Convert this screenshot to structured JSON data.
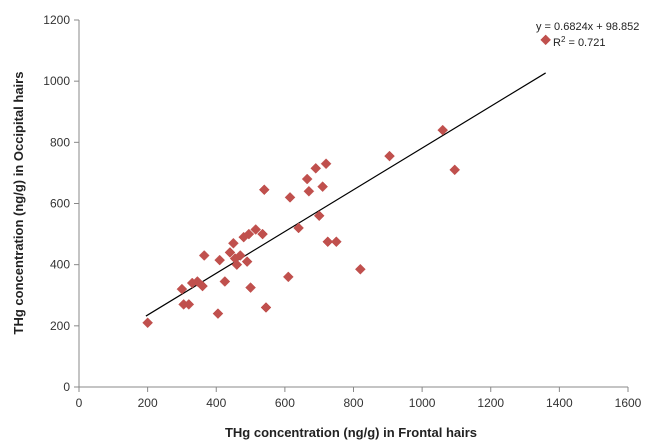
{
  "chart_data": {
    "type": "scatter",
    "title": "",
    "xlabel": "THg concentration (ng/g) in Frontal hairs",
    "ylabel": "THg concentration (ng/g) in Occipital hairs",
    "xlim": [
      0,
      1600
    ],
    "ylim": [
      0,
      1200
    ],
    "xticks": [
      "0",
      "200",
      "400",
      "600",
      "800",
      "1000",
      "1200",
      "1400",
      "1600"
    ],
    "yticks": [
      "0",
      "200",
      "400",
      "600",
      "800",
      "1000",
      "1200"
    ],
    "marker": "diamond",
    "marker_color": "#c0504d",
    "trendline": {
      "slope": 0.6824,
      "intercept": 98.852,
      "x_range": [
        195,
        1360
      ],
      "equation": "y = 0.6824x + 98.852",
      "r2_prefix": "R",
      "r2_exp": "2",
      "r2_value": " = 0.721"
    },
    "grid": false,
    "legend": "none",
    "points": [
      {
        "x": 200,
        "y": 210
      },
      {
        "x": 300,
        "y": 320
      },
      {
        "x": 305,
        "y": 270
      },
      {
        "x": 320,
        "y": 270
      },
      {
        "x": 330,
        "y": 340
      },
      {
        "x": 345,
        "y": 345
      },
      {
        "x": 365,
        "y": 430
      },
      {
        "x": 360,
        "y": 330
      },
      {
        "x": 405,
        "y": 240
      },
      {
        "x": 410,
        "y": 415
      },
      {
        "x": 425,
        "y": 345
      },
      {
        "x": 440,
        "y": 440
      },
      {
        "x": 450,
        "y": 470
      },
      {
        "x": 455,
        "y": 420
      },
      {
        "x": 460,
        "y": 400
      },
      {
        "x": 470,
        "y": 430
      },
      {
        "x": 480,
        "y": 490
      },
      {
        "x": 490,
        "y": 410
      },
      {
        "x": 495,
        "y": 500
      },
      {
        "x": 500,
        "y": 325
      },
      {
        "x": 515,
        "y": 515
      },
      {
        "x": 535,
        "y": 500
      },
      {
        "x": 540,
        "y": 645
      },
      {
        "x": 545,
        "y": 260
      },
      {
        "x": 610,
        "y": 360
      },
      {
        "x": 615,
        "y": 620
      },
      {
        "x": 640,
        "y": 520
      },
      {
        "x": 665,
        "y": 680
      },
      {
        "x": 670,
        "y": 640
      },
      {
        "x": 690,
        "y": 715
      },
      {
        "x": 700,
        "y": 560
      },
      {
        "x": 710,
        "y": 655
      },
      {
        "x": 720,
        "y": 730
      },
      {
        "x": 725,
        "y": 475
      },
      {
        "x": 750,
        "y": 475
      },
      {
        "x": 820,
        "y": 385
      },
      {
        "x": 905,
        "y": 755
      },
      {
        "x": 1060,
        "y": 840
      },
      {
        "x": 1095,
        "y": 710
      },
      {
        "x": 1360,
        "y": 1135
      }
    ]
  }
}
